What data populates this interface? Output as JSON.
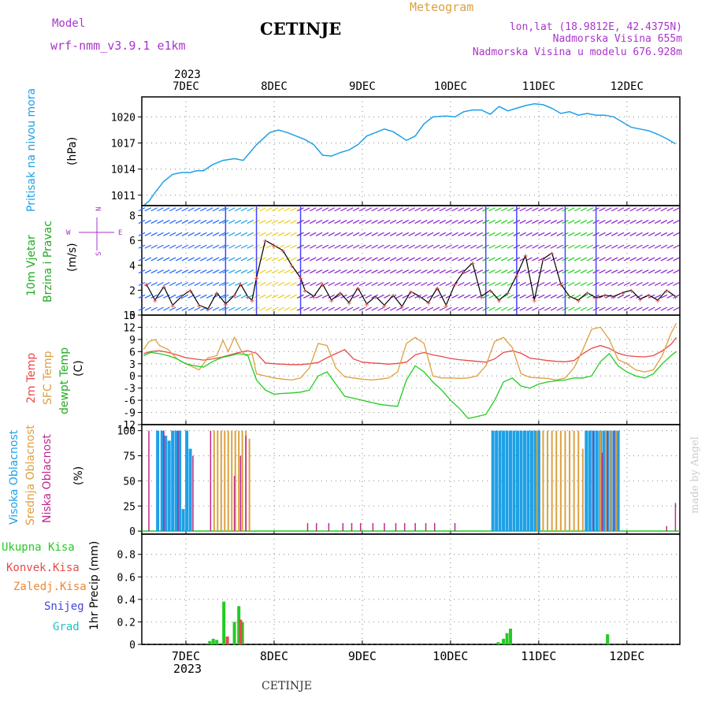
{
  "header": {
    "model_label": "Model",
    "model_name": "wrf-nmm_v3.9.1 e1km",
    "station_title": "CETINJE",
    "meteogram_label": "Meteogram",
    "lonlat": "lon,lat (18.9812E, 42.4375N)",
    "elevation": "Nadmorska Visina 655m",
    "model_elevation": "Nadmorska Visina u modelu 676.928m"
  },
  "footer": {
    "station": "CETINJE",
    "credit": "made by Angel"
  },
  "colors": {
    "pressure": "#1ea0e6",
    "temp2m": "#e84a4a",
    "sfc_temp": "#dda040",
    "dewpoint": "#22cc22",
    "high_cloud": "#1ea0e6",
    "mid_cloud": "#dda040",
    "low_cloud": "#c0288f",
    "precip_total": "#22cc22",
    "precip_conv": "#e84a4a",
    "precip_frozen": "#ee8833",
    "snow": "#4444dd",
    "hail": "#22c0c0",
    "wind_label_green": "#22aa22",
    "wind_label_purple": "#aa33cc",
    "grid": "#999999",
    "axis": "#000000"
  },
  "x_axis": {
    "year": "2023",
    "days": [
      "7DEC",
      "8DEC",
      "9DEC",
      "10DEC",
      "11DEC",
      "12DEC"
    ],
    "day_index": [
      0,
      1,
      2,
      3,
      4,
      5
    ],
    "range": [
      -0.5,
      5.6
    ]
  },
  "panels": {
    "pressure": {
      "ylabel_1": "Pritisak na nivou mora",
      "unit": "(hPa)",
      "yticks": [
        "1011",
        "1014",
        "1017",
        "1020"
      ],
      "ytick_values": [
        1011,
        1014,
        1017,
        1020
      ],
      "ylim": [
        1009.8,
        1022.3
      ]
    },
    "wind": {
      "ylabel_1": "10m Vjetar",
      "ylabel_2": "Brzina i Pravac",
      "unit": "(m/s)",
      "compass_n": "N",
      "compass_s": "S",
      "compass_e": "E",
      "compass_w": "W",
      "yticks": [
        "0",
        "2",
        "4",
        "6",
        "8"
      ],
      "ytick_values": [
        0,
        2,
        4,
        6,
        8
      ],
      "ylim": [
        0,
        8.8
      ]
    },
    "temperature": {
      "ylabel_1": "2m Temp",
      "ylabel_2": "SFC Temp",
      "ylabel_3": "dewpt Temp",
      "unit": "(C)",
      "yticks": [
        "-12",
        "-9",
        "-6",
        "-3",
        "0",
        "3",
        "6",
        "9",
        "12",
        "15"
      ],
      "ytick_values": [
        -12,
        -9,
        -6,
        -3,
        0,
        3,
        6,
        9,
        12,
        15
      ],
      "ylim": [
        -12,
        15
      ]
    },
    "cloud": {
      "ylabel_1": "Visoka Oblacnost",
      "ylabel_2": "Srednja Oblacnost",
      "ylabel_3": "Niska Oblacnost",
      "unit": "(%)",
      "yticks": [
        "0",
        "25",
        "50",
        "75",
        "100"
      ],
      "ytick_values": [
        0,
        25,
        50,
        75,
        100
      ],
      "ylim": [
        -3,
        106
      ]
    },
    "precip": {
      "legend": [
        "Ukupna Kisa",
        "Konvek.Kisa",
        "Zaledj.Kisa",
        "Snijeg",
        "Grad"
      ],
      "unit": "1hr Precip (mm)",
      "yticks": [
        "0",
        "0.2",
        "0.4",
        "0.6",
        "0.8"
      ],
      "ytick_values": [
        0,
        0.2,
        0.4,
        0.6,
        0.8
      ],
      "ylim": [
        0,
        0.98
      ]
    }
  },
  "chart_data": [
    {
      "type": "line",
      "name": "pressure",
      "x": [
        -0.48,
        -0.42,
        -0.35,
        -0.25,
        -0.15,
        -0.05,
        0.05,
        0.12,
        0.2,
        0.3,
        0.42,
        0.55,
        0.65,
        0.8,
        0.95,
        1.05,
        1.15,
        1.25,
        1.35,
        1.45,
        1.55,
        1.65,
        1.75,
        1.85,
        1.95,
        2.05,
        2.15,
        2.25,
        2.35,
        2.5,
        2.6,
        2.7,
        2.8,
        2.95,
        3.05,
        3.15,
        3.25,
        3.35,
        3.45,
        3.55,
        3.65,
        3.75,
        3.85,
        3.95,
        4.05,
        4.15,
        4.25,
        4.35,
        4.45,
        4.55,
        4.65,
        4.75,
        4.85,
        4.95,
        5.05,
        5.15,
        5.25,
        5.35,
        5.45,
        5.55
      ],
      "y": [
        1009.8,
        1010.3,
        1011.3,
        1012.6,
        1013.4,
        1013.6,
        1013.6,
        1013.8,
        1013.8,
        1014.5,
        1015.0,
        1015.2,
        1015.0,
        1016.8,
        1018.2,
        1018.5,
        1018.2,
        1017.8,
        1017.4,
        1016.8,
        1015.6,
        1015.5,
        1015.9,
        1016.2,
        1016.8,
        1017.8,
        1018.2,
        1018.6,
        1018.3,
        1017.3,
        1017.8,
        1019.2,
        1020.0,
        1020.1,
        1020.0,
        1020.6,
        1020.8,
        1020.8,
        1020.3,
        1021.2,
        1020.7,
        1021.0,
        1021.3,
        1021.5,
        1021.4,
        1021.0,
        1020.4,
        1020.6,
        1020.2,
        1020.4,
        1020.2,
        1020.2,
        1020.0,
        1019.4,
        1018.8,
        1018.6,
        1018.4,
        1018.0,
        1017.5,
        1016.9
      ]
    },
    {
      "type": "line",
      "name": "wind_speed",
      "x": [
        -0.45,
        -0.35,
        -0.25,
        -0.15,
        -0.05,
        0.05,
        0.15,
        0.25,
        0.35,
        0.45,
        0.55,
        0.62,
        0.7,
        0.75,
        0.8,
        0.9,
        1.0,
        1.1,
        1.2,
        1.3,
        1.35,
        1.45,
        1.55,
        1.65,
        1.75,
        1.85,
        1.95,
        2.05,
        2.15,
        2.25,
        2.35,
        2.45,
        2.55,
        2.65,
        2.75,
        2.85,
        2.95,
        3.05,
        3.15,
        3.25,
        3.35,
        3.45,
        3.55,
        3.65,
        3.75,
        3.85,
        3.95,
        4.05,
        4.15,
        4.25,
        4.35,
        4.45,
        4.55,
        4.65,
        4.75,
        4.85,
        4.95,
        5.05,
        5.15,
        5.25,
        5.35,
        5.45,
        5.55
      ],
      "y": [
        2.5,
        1.2,
        2.3,
        0.8,
        1.5,
        2.0,
        0.8,
        0.5,
        1.8,
        0.9,
        1.6,
        2.5,
        1.5,
        1.2,
        3.0,
        6.0,
        5.6,
        5.2,
        4.0,
        3.0,
        2.0,
        1.5,
        2.5,
        1.2,
        1.8,
        1.0,
        2.2,
        0.9,
        1.5,
        0.8,
        1.6,
        0.7,
        1.9,
        1.5,
        1.0,
        2.2,
        0.8,
        2.5,
        3.5,
        4.2,
        1.5,
        2.0,
        1.2,
        1.8,
        3.2,
        4.8,
        1.2,
        4.5,
        5.0,
        2.5,
        1.5,
        1.2,
        1.8,
        1.4,
        1.6,
        1.5,
        1.8,
        2.0,
        1.3,
        1.6,
        1.2,
        2.0,
        1.5
      ]
    },
    {
      "type": "line",
      "name": "temp_2m",
      "x": [
        -0.48,
        -0.4,
        -0.3,
        -0.2,
        -0.1,
        0.0,
        0.1,
        0.2,
        0.3,
        0.4,
        0.5,
        0.6,
        0.7,
        0.8,
        0.9,
        1.0,
        1.1,
        1.2,
        1.3,
        1.4,
        1.5,
        1.6,
        1.7,
        1.8,
        1.9,
        2.0,
        2.1,
        2.2,
        2.3,
        2.4,
        2.5,
        2.6,
        2.7,
        2.8,
        2.9,
        3.0,
        3.1,
        3.2,
        3.3,
        3.4,
        3.5,
        3.6,
        3.7,
        3.8,
        3.9,
        4.0,
        4.1,
        4.2,
        4.3,
        4.4,
        4.5,
        4.6,
        4.7,
        4.8,
        4.9,
        5.0,
        5.1,
        5.2,
        5.3,
        5.4,
        5.5,
        5.56
      ],
      "y": [
        5.5,
        6.0,
        6.2,
        5.8,
        5.2,
        4.5,
        4.2,
        3.9,
        4.2,
        4.6,
        5.2,
        5.8,
        6.2,
        5.6,
        3.2,
        3.0,
        2.9,
        2.8,
        2.8,
        3.0,
        3.3,
        4.5,
        5.5,
        6.5,
        4.2,
        3.4,
        3.2,
        3.1,
        2.9,
        3.1,
        3.4,
        5.2,
        5.8,
        5.2,
        4.8,
        4.3,
        4.0,
        3.8,
        3.6,
        3.4,
        4.2,
        5.8,
        6.2,
        5.6,
        4.4,
        4.1,
        3.8,
        3.6,
        3.5,
        3.8,
        5.5,
        6.8,
        7.5,
        6.8,
        5.6,
        5.0,
        4.8,
        4.7,
        5.0,
        6.2,
        7.8,
        9.5
      ]
    },
    {
      "type": "line",
      "name": "temp_sfc",
      "x": [
        -0.48,
        -0.42,
        -0.35,
        -0.3,
        -0.2,
        -0.1,
        -0.05,
        0.05,
        0.15,
        0.25,
        0.35,
        0.42,
        0.48,
        0.55,
        0.62,
        0.68,
        0.75,
        0.8,
        0.9,
        1.0,
        1.1,
        1.2,
        1.3,
        1.4,
        1.5,
        1.6,
        1.7,
        1.8,
        1.9,
        2.0,
        2.1,
        2.2,
        2.3,
        2.4,
        2.5,
        2.6,
        2.7,
        2.8,
        2.9,
        3.0,
        3.1,
        3.2,
        3.3,
        3.4,
        3.5,
        3.6,
        3.7,
        3.8,
        3.9,
        4.0,
        4.1,
        4.2,
        4.3,
        4.4,
        4.5,
        4.6,
        4.7,
        4.8,
        4.9,
        5.0,
        5.1,
        5.2,
        5.3,
        5.4,
        5.5,
        5.56
      ],
      "y": [
        6.5,
        8.5,
        9.0,
        7.5,
        6.5,
        4.2,
        3.5,
        2.5,
        1.5,
        4.5,
        5.0,
        8.8,
        6.0,
        9.5,
        6.5,
        5.0,
        5.5,
        0.5,
        0.0,
        -0.5,
        -0.8,
        -1.0,
        -0.5,
        2.0,
        8.0,
        7.5,
        2.0,
        -0.2,
        -0.5,
        -0.8,
        -1.0,
        -0.8,
        -0.5,
        1.0,
        8.0,
        9.5,
        8.0,
        0.0,
        -0.5,
        -0.5,
        -0.6,
        -0.5,
        0.0,
        2.5,
        8.5,
        9.5,
        7.0,
        0.5,
        -0.3,
        -0.5,
        -0.6,
        -1.0,
        -0.5,
        2.0,
        6.5,
        11.5,
        12.0,
        9.0,
        4.0,
        3.0,
        1.5,
        1.0,
        1.5,
        5.0,
        10.5,
        13.0
      ]
    },
    {
      "type": "line",
      "name": "dewpoint",
      "x": [
        -0.48,
        -0.4,
        -0.3,
        -0.2,
        -0.1,
        0.0,
        0.1,
        0.2,
        0.3,
        0.4,
        0.5,
        0.6,
        0.7,
        0.75,
        0.8,
        0.9,
        1.0,
        1.1,
        1.2,
        1.3,
        1.4,
        1.5,
        1.6,
        1.7,
        1.8,
        1.9,
        2.0,
        2.1,
        2.2,
        2.3,
        2.4,
        2.5,
        2.6,
        2.7,
        2.8,
        2.9,
        3.0,
        3.1,
        3.2,
        3.3,
        3.4,
        3.5,
        3.6,
        3.7,
        3.8,
        3.9,
        4.0,
        4.1,
        4.2,
        4.3,
        4.4,
        4.5,
        4.6,
        4.7,
        4.8,
        4.9,
        5.0,
        5.1,
        5.2,
        5.3,
        5.4,
        5.5,
        5.56
      ],
      "y": [
        5.0,
        5.8,
        5.5,
        5.0,
        4.2,
        3.0,
        2.5,
        2.2,
        3.5,
        4.5,
        5.0,
        5.5,
        5.2,
        2.0,
        -1.0,
        -3.5,
        -4.5,
        -4.3,
        -4.2,
        -4.0,
        -3.5,
        0.0,
        1.0,
        -2.0,
        -5.0,
        -5.5,
        -6.0,
        -6.5,
        -7.0,
        -7.3,
        -7.5,
        -1.0,
        2.5,
        1.0,
        -1.5,
        -3.5,
        -6.0,
        -8.0,
        -10.5,
        -10.0,
        -9.5,
        -6.0,
        -1.5,
        -0.5,
        -2.5,
        -3.0,
        -2.0,
        -1.5,
        -1.2,
        -1.0,
        -0.5,
        -0.5,
        0.0,
        3.5,
        5.5,
        2.5,
        1.0,
        0.0,
        -0.5,
        0.5,
        3.0,
        5.0,
        6.0
      ]
    },
    {
      "type": "bar",
      "name": "cloud_cover_pct",
      "series": [
        {
          "name": "Visoka Oblacnost",
          "x": [
            -0.32,
            -0.27,
            -0.23,
            -0.19,
            -0.15,
            -0.11,
            -0.07,
            -0.03,
            0.01,
            0.05,
            3.48,
            3.52,
            3.56,
            3.6,
            3.64,
            3.68,
            3.72,
            3.76,
            3.8,
            3.84,
            3.88,
            3.92,
            3.96,
            4.0,
            4.54,
            4.58,
            4.62,
            4.66,
            4.7,
            4.74,
            4.78,
            4.82,
            4.86,
            4.9
          ],
          "values": [
            100,
            100,
            95,
            90,
            100,
            100,
            100,
            22,
            100,
            82,
            100,
            100,
            100,
            100,
            100,
            100,
            100,
            100,
            100,
            100,
            100,
            100,
            100,
            100,
            100,
            100,
            100,
            100,
            100,
            100,
            100,
            100,
            100,
            100
          ]
        },
        {
          "name": "Srednja Oblacnost",
          "x": [
            0.32,
            0.36,
            0.4,
            0.44,
            0.48,
            0.52,
            0.56,
            0.6,
            0.64,
            0.68,
            0.72,
            3.98,
            4.05,
            4.1,
            4.15,
            4.2,
            4.25,
            4.3,
            4.35,
            4.4,
            4.45,
            4.5,
            4.7,
            4.76,
            4.82,
            4.88
          ],
          "values": [
            100,
            100,
            100,
            100,
            100,
            100,
            100,
            100,
            100,
            100,
            92,
            100,
            100,
            100,
            100,
            100,
            100,
            100,
            100,
            100,
            100,
            82,
            100,
            100,
            100,
            100
          ]
        },
        {
          "name": "Niska Oblacnost",
          "x": [
            -0.42,
            -0.25,
            -0.09,
            0.08,
            0.28,
            0.55,
            0.62,
            0.68,
            1.38,
            1.48,
            1.62,
            1.78,
            1.88,
            1.98,
            2.12,
            2.25,
            2.38,
            2.48,
            2.6,
            2.72,
            2.82,
            3.05,
            4.62,
            4.72,
            4.78,
            4.85,
            5.45,
            5.55
          ],
          "values": [
            100,
            100,
            100,
            75,
            100,
            55,
            75,
            95,
            8,
            8,
            8,
            8,
            8,
            8,
            8,
            8,
            8,
            8,
            8,
            8,
            8,
            8,
            100,
            78,
            100,
            100,
            5,
            28
          ]
        }
      ]
    },
    {
      "type": "bar",
      "name": "precip_1hr_mm",
      "series": [
        {
          "name": "Ukupna Kisa",
          "x": [
            0.27,
            0.31,
            0.35,
            0.43,
            0.55,
            0.6,
            0.64,
            3.54,
            3.6,
            3.64,
            3.68,
            3.72,
            3.76,
            3.8,
            3.84,
            4.34,
            4.38,
            4.42,
            4.46,
            4.5,
            4.54,
            4.58,
            4.62,
            4.66,
            4.7,
            4.74,
            4.78,
            4.82,
            4.86,
            4.9,
            4.94
          ],
          "values": [
            0.03,
            0.05,
            0.04,
            0.38,
            0.2,
            0.34,
            0.2,
            0.02,
            0.05,
            0.1,
            0.14,
            0.0,
            0.0,
            0.0,
            0.0,
            0.0,
            0.0,
            0.0,
            0.0,
            0.0,
            0.0,
            0.0,
            0.0,
            0.0,
            0.0,
            0.0,
            0.09,
            0.0,
            0.0,
            0.0,
            0.0
          ]
        },
        {
          "name": "Konvek.Kisa",
          "x": [
            0.47,
            0.62
          ],
          "values": [
            0.07,
            0.22
          ]
        }
      ]
    }
  ]
}
